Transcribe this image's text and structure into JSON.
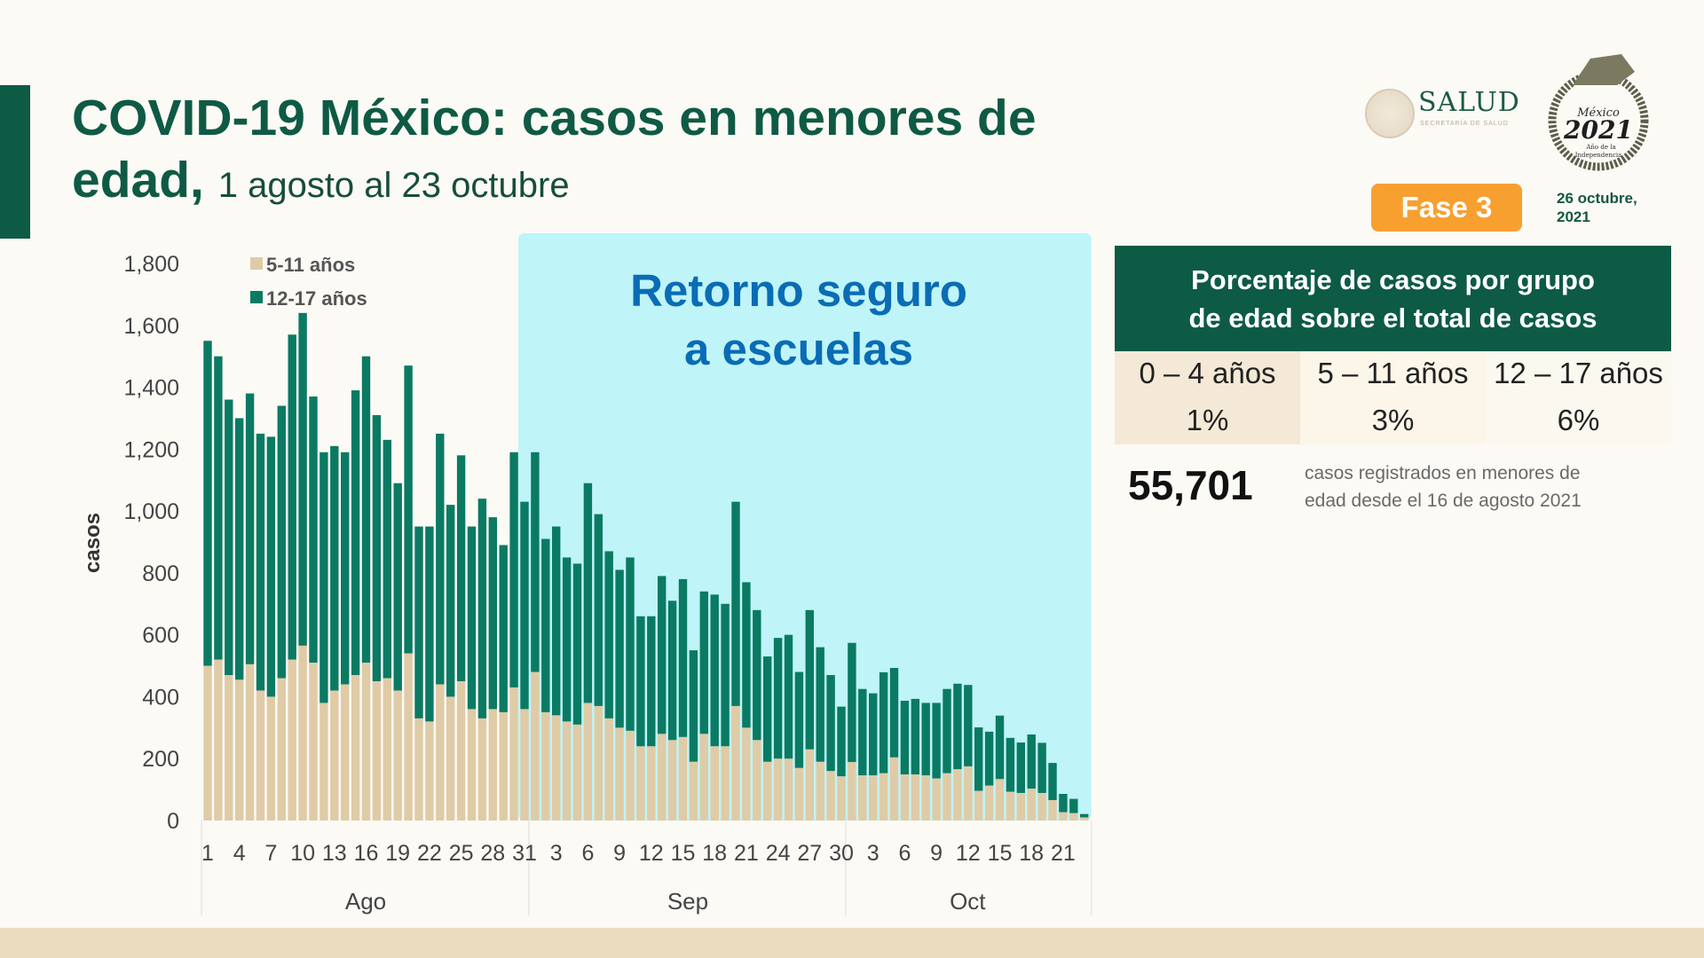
{
  "header": {
    "title": "COVID-19 México: casos en menores de edad,",
    "title_line1": "COVID-19 México: casos en menores de",
    "title_line2": "edad,",
    "subtitle": "1 agosto al 23 octubre",
    "phase_badge": "Fase 3",
    "date": "26 octubre, 2021",
    "date_line1": "26 octubre,",
    "date_line2": "2021",
    "logos": {
      "salud": "SALUD",
      "salud_sub": "SECRETARÍA DE SALUD",
      "mexico": "México",
      "year": "2021",
      "motto": "Año de la Independencia"
    }
  },
  "colors": {
    "title": "#0f5a45",
    "series_5_11": "#dfcba6",
    "series_12_17": "#0b7a63",
    "highlight": "#bff4f8",
    "highlight_text": "#0a6cb5",
    "badge": "#f7a030"
  },
  "chart_data": {
    "type": "bar",
    "stacked": true,
    "ylabel": "casos",
    "ylim": [
      0,
      1800
    ],
    "yticks": [
      "0",
      "200",
      "400",
      "600",
      "800",
      "1,000",
      "1,200",
      "1,400",
      "1,600",
      "1,800"
    ],
    "grid": false,
    "legend_position": "top-left",
    "months": [
      "Ago",
      "Sep",
      "Oct"
    ],
    "month_lengths": [
      31,
      30,
      23
    ],
    "xtick_labels": [
      "1",
      "4",
      "7",
      "10",
      "13",
      "16",
      "19",
      "22",
      "25",
      "28",
      "31",
      "3",
      "6",
      "9",
      "12",
      "15",
      "18",
      "21",
      "24",
      "27",
      "30",
      "3",
      "6",
      "9",
      "12",
      "15",
      "18",
      "21"
    ],
    "annotation": {
      "text_line1": "Retorno seguro",
      "text_line2": "a escuelas",
      "start": "Ago 31",
      "end": "Oct 23"
    },
    "series": [
      {
        "name": "5-11 años",
        "values": [
          500,
          520,
          470,
          455,
          505,
          420,
          400,
          460,
          520,
          565,
          510,
          380,
          420,
          440,
          470,
          510,
          450,
          460,
          420,
          540,
          330,
          320,
          440,
          400,
          450,
          360,
          330,
          360,
          350,
          430,
          360,
          480,
          350,
          340,
          320,
          310,
          380,
          370,
          330,
          300,
          290,
          240,
          240,
          280,
          260,
          270,
          190,
          280,
          240,
          240,
          370,
          300,
          260,
          190,
          200,
          200,
          170,
          230,
          190,
          160,
          143,
          189,
          146,
          146,
          153,
          204,
          149,
          149,
          146,
          136,
          153,
          166,
          175,
          96,
          113,
          134,
          93,
          89,
          103,
          89,
          66,
          27,
          24,
          10
        ]
      },
      {
        "name": "12-17 años",
        "values": [
          1050,
          980,
          890,
          845,
          875,
          830,
          840,
          880,
          1050,
          1075,
          860,
          810,
          790,
          750,
          920,
          990,
          860,
          770,
          670,
          930,
          620,
          630,
          810,
          620,
          730,
          590,
          710,
          620,
          540,
          760,
          670,
          710,
          560,
          610,
          530,
          520,
          710,
          620,
          540,
          510,
          560,
          420,
          420,
          510,
          450,
          510,
          360,
          460,
          490,
          460,
          660,
          470,
          420,
          340,
          390,
          400,
          310,
          450,
          370,
          310,
          225,
          385,
          279,
          265,
          326,
          289,
          238,
          244,
          234,
          244,
          272,
          276,
          263,
          205,
          174,
          205,
          174,
          163,
          175,
          162,
          120,
          59,
          46,
          11
        ]
      }
    ]
  },
  "table": {
    "title": "Porcentaje de casos por grupo de edad sobre el total de casos",
    "title_line1": "Porcentaje de casos por grupo",
    "title_line2": "de edad sobre el total de casos",
    "columns": [
      "0 – 4 años",
      "5 – 11 años",
      "12 – 17 años"
    ],
    "values": [
      "1%",
      "3%",
      "6%"
    ]
  },
  "summary": {
    "total": "55,701",
    "description": "casos registrados en menores de edad desde el 16 de agosto 2021",
    "description_line1": "casos registrados en menores de",
    "description_line2": "edad desde el 16 de agosto 2021"
  }
}
